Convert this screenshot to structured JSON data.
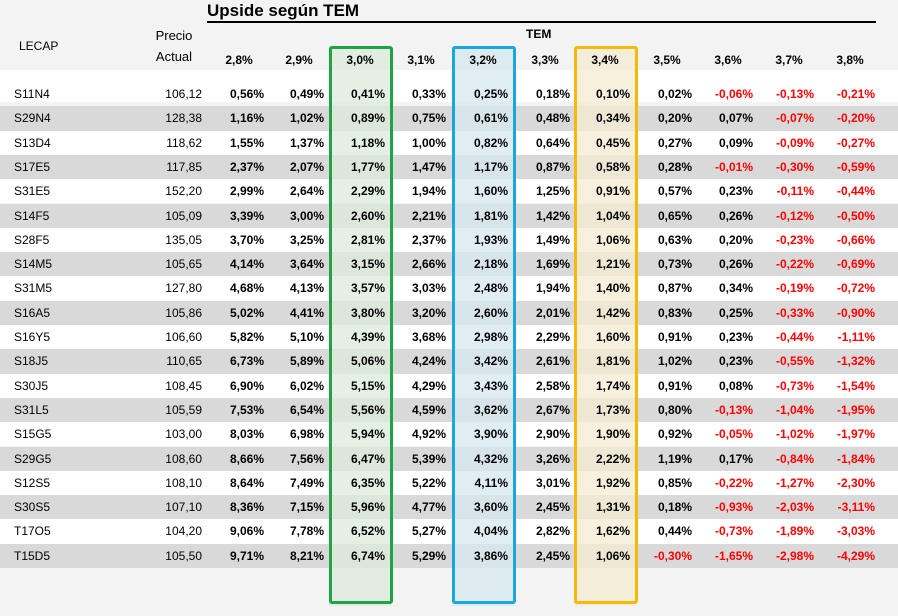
{
  "chart_data": {
    "type": "table",
    "title": "Upside según TEM",
    "row_header": "LECAP",
    "price_header": [
      "Precio",
      "Actual"
    ],
    "column_group_label": "TEM",
    "columns": [
      "2,8%",
      "2,9%",
      "3,0%",
      "3,1%",
      "3,2%",
      "3,3%",
      "3,4%",
      "3,5%",
      "3,6%",
      "3,7%",
      "3,8%"
    ],
    "highlighted_columns": [
      {
        "column": "3,0%",
        "color": "#1fa347",
        "fill": "#dcebdc"
      },
      {
        "column": "3,2%",
        "color": "#1aa7e0",
        "fill": "#d5e7ef"
      },
      {
        "column": "3,4%",
        "color": "#f5b90a",
        "fill": "#f3ebd2"
      }
    ],
    "negative_color": "#ff0000",
    "rows": [
      {
        "lecap": "S11N4",
        "price": "106,12",
        "values": [
          "0,56%",
          "0,49%",
          "0,41%",
          "0,33%",
          "0,25%",
          "0,18%",
          "0,10%",
          "0,02%",
          "-0,06%",
          "-0,13%",
          "-0,21%"
        ]
      },
      {
        "lecap": "S29N4",
        "price": "128,38",
        "values": [
          "1,16%",
          "1,02%",
          "0,89%",
          "0,75%",
          "0,61%",
          "0,48%",
          "0,34%",
          "0,20%",
          "0,07%",
          "-0,07%",
          "-0,20%"
        ]
      },
      {
        "lecap": "S13D4",
        "price": "118,62",
        "values": [
          "1,55%",
          "1,37%",
          "1,18%",
          "1,00%",
          "0,82%",
          "0,64%",
          "0,45%",
          "0,27%",
          "0,09%",
          "-0,09%",
          "-0,27%"
        ]
      },
      {
        "lecap": "S17E5",
        "price": "117,85",
        "values": [
          "2,37%",
          "2,07%",
          "1,77%",
          "1,47%",
          "1,17%",
          "0,87%",
          "0,58%",
          "0,28%",
          "-0,01%",
          "-0,30%",
          "-0,59%"
        ]
      },
      {
        "lecap": "S31E5",
        "price": "152,20",
        "values": [
          "2,99%",
          "2,64%",
          "2,29%",
          "1,94%",
          "1,60%",
          "1,25%",
          "0,91%",
          "0,57%",
          "0,23%",
          "-0,11%",
          "-0,44%"
        ]
      },
      {
        "lecap": "S14F5",
        "price": "105,09",
        "values": [
          "3,39%",
          "3,00%",
          "2,60%",
          "2,21%",
          "1,81%",
          "1,42%",
          "1,04%",
          "0,65%",
          "0,26%",
          "-0,12%",
          "-0,50%"
        ]
      },
      {
        "lecap": "S28F5",
        "price": "135,05",
        "values": [
          "3,70%",
          "3,25%",
          "2,81%",
          "2,37%",
          "1,93%",
          "1,49%",
          "1,06%",
          "0,63%",
          "0,20%",
          "-0,23%",
          "-0,66%"
        ]
      },
      {
        "lecap": "S14M5",
        "price": "105,65",
        "values": [
          "4,14%",
          "3,64%",
          "3,15%",
          "2,66%",
          "2,18%",
          "1,69%",
          "1,21%",
          "0,73%",
          "0,26%",
          "-0,22%",
          "-0,69%"
        ]
      },
      {
        "lecap": "S31M5",
        "price": "127,80",
        "values": [
          "4,68%",
          "4,13%",
          "3,57%",
          "3,03%",
          "2,48%",
          "1,94%",
          "1,40%",
          "0,87%",
          "0,34%",
          "-0,19%",
          "-0,72%"
        ]
      },
      {
        "lecap": "S16A5",
        "price": "105,86",
        "values": [
          "5,02%",
          "4,41%",
          "3,80%",
          "3,20%",
          "2,60%",
          "2,01%",
          "1,42%",
          "0,83%",
          "0,25%",
          "-0,33%",
          "-0,90%"
        ]
      },
      {
        "lecap": "S16Y5",
        "price": "106,60",
        "values": [
          "5,82%",
          "5,10%",
          "4,39%",
          "3,68%",
          "2,98%",
          "2,29%",
          "1,60%",
          "0,91%",
          "0,23%",
          "-0,44%",
          "-1,11%"
        ]
      },
      {
        "lecap": "S18J5",
        "price": "110,65",
        "values": [
          "6,73%",
          "5,89%",
          "5,06%",
          "4,24%",
          "3,42%",
          "2,61%",
          "1,81%",
          "1,02%",
          "0,23%",
          "-0,55%",
          "-1,32%"
        ]
      },
      {
        "lecap": "S30J5",
        "price": "108,45",
        "values": [
          "6,90%",
          "6,02%",
          "5,15%",
          "4,29%",
          "3,43%",
          "2,58%",
          "1,74%",
          "0,91%",
          "0,08%",
          "-0,73%",
          "-1,54%"
        ]
      },
      {
        "lecap": "S31L5",
        "price": "105,59",
        "values": [
          "7,53%",
          "6,54%",
          "5,56%",
          "4,59%",
          "3,62%",
          "2,67%",
          "1,73%",
          "0,80%",
          "-0,13%",
          "-1,04%",
          "-1,95%"
        ]
      },
      {
        "lecap": "S15G5",
        "price": "103,00",
        "values": [
          "8,03%",
          "6,98%",
          "5,94%",
          "4,92%",
          "3,90%",
          "2,90%",
          "1,90%",
          "0,92%",
          "-0,05%",
          "-1,02%",
          "-1,97%"
        ]
      },
      {
        "lecap": "S29G5",
        "price": "108,60",
        "values": [
          "8,66%",
          "7,56%",
          "6,47%",
          "5,39%",
          "4,32%",
          "3,26%",
          "2,22%",
          "1,19%",
          "0,17%",
          "-0,84%",
          "-1,84%"
        ]
      },
      {
        "lecap": "S12S5",
        "price": "108,10",
        "values": [
          "8,64%",
          "7,49%",
          "6,35%",
          "5,22%",
          "4,11%",
          "3,01%",
          "1,92%",
          "0,85%",
          "-0,22%",
          "-1,27%",
          "-2,30%"
        ]
      },
      {
        "lecap": "S30S5",
        "price": "107,10",
        "values": [
          "8,36%",
          "7,15%",
          "5,96%",
          "4,77%",
          "3,60%",
          "2,45%",
          "1,31%",
          "0,18%",
          "-0,93%",
          "-2,03%",
          "-3,11%"
        ]
      },
      {
        "lecap": "T17O5",
        "price": "104,20",
        "values": [
          "9,06%",
          "7,78%",
          "6,52%",
          "5,27%",
          "4,04%",
          "2,82%",
          "1,62%",
          "0,44%",
          "-0,73%",
          "-1,89%",
          "-3,03%"
        ]
      },
      {
        "lecap": "T15D5",
        "price": "105,50",
        "values": [
          "9,71%",
          "8,21%",
          "6,74%",
          "5,29%",
          "3,86%",
          "2,45%",
          "1,06%",
          "-0,30%",
          "-1,65%",
          "-2,98%",
          "-4,29%"
        ]
      }
    ]
  }
}
